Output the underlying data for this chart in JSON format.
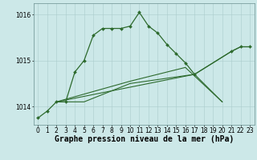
{
  "color": "#2d6a2d",
  "bg_color": "#cce8e8",
  "grid_color": "#aacccc",
  "border_color": "#7a9e9e",
  "xlim": [
    -0.5,
    23.5
  ],
  "ylim": [
    1013.6,
    1016.25
  ],
  "yticks": [
    1014,
    1015,
    1016
  ],
  "xticks": [
    0,
    1,
    2,
    3,
    4,
    5,
    6,
    7,
    8,
    9,
    10,
    11,
    12,
    13,
    14,
    15,
    16,
    17,
    18,
    19,
    20,
    21,
    22,
    23
  ],
  "xlabel": "Graphe pression niveau de la mer (hPa)",
  "xlabel_fontsize": 7.0,
  "tick_fontsize": 5.5,
  "line1_x": [
    0,
    1,
    2,
    3,
    4,
    5,
    6,
    7,
    8,
    9,
    10,
    11,
    12,
    13,
    14,
    15,
    16,
    17,
    21,
    22,
    23
  ],
  "line1_y": [
    1013.75,
    1013.9,
    1014.1,
    1014.1,
    1014.75,
    1015.0,
    1015.55,
    1015.7,
    1015.7,
    1015.7,
    1015.75,
    1016.05,
    1015.75,
    1015.6,
    1015.35,
    1015.15,
    1014.95,
    1014.7,
    1015.2,
    1015.3,
    1015.3
  ],
  "line2_x": [
    2,
    17,
    21,
    22,
    23
  ],
  "line2_y": [
    1014.1,
    1014.7,
    1015.2,
    1015.3,
    1015.3
  ],
  "line3_x": [
    2,
    10,
    16,
    20
  ],
  "line3_y": [
    1014.1,
    1014.55,
    1014.85,
    1014.1
  ],
  "line4_x": [
    2,
    5,
    10,
    17,
    20
  ],
  "line4_y": [
    1014.1,
    1014.1,
    1014.5,
    1014.7,
    1014.1
  ]
}
